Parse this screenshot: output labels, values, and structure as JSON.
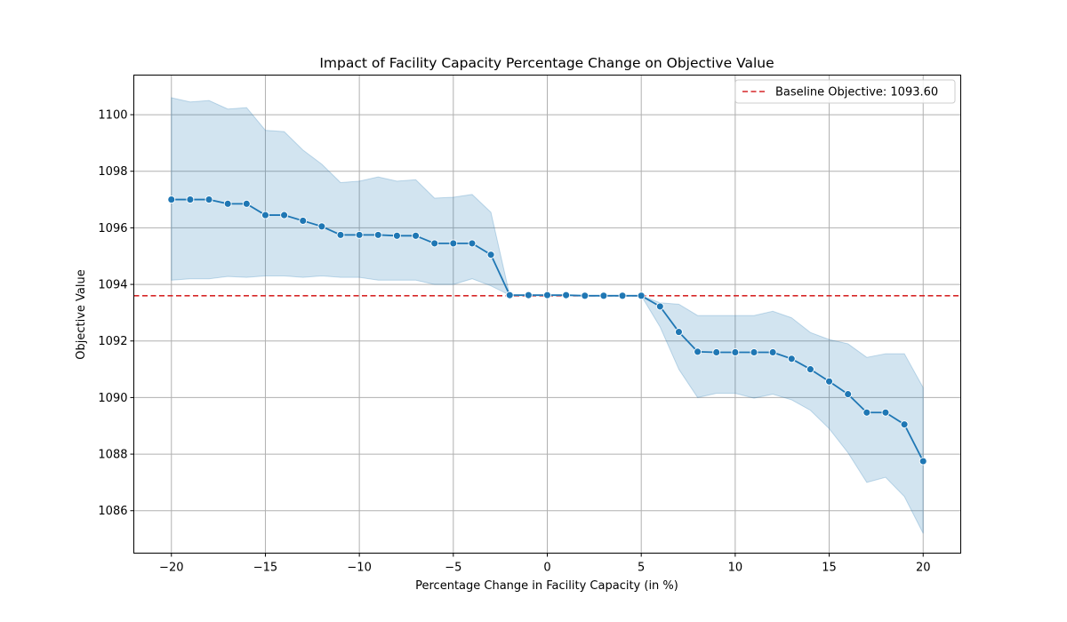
{
  "chart_data": {
    "type": "line",
    "title": "Impact of Facility Capacity Percentage Change on Objective Value",
    "xlabel": "Percentage Change in Facility Capacity (in %)",
    "ylabel": "Objective Value",
    "xlim": [
      -22,
      22
    ],
    "ylim": [
      1084.5,
      1101.4
    ],
    "x_ticks": [
      -20,
      -15,
      -10,
      -5,
      0,
      5,
      10,
      15,
      20
    ],
    "x_tick_labels": [
      "−20",
      "−15",
      "−10",
      "−5",
      "0",
      "5",
      "10",
      "15",
      "20"
    ],
    "y_ticks": [
      1086,
      1088,
      1090,
      1092,
      1094,
      1096,
      1098,
      1100
    ],
    "y_tick_labels": [
      "1086",
      "1088",
      "1090",
      "1092",
      "1094",
      "1096",
      "1098",
      "1100"
    ],
    "grid": true,
    "legend_position": "top-right",
    "colors": {
      "line": "#1f77b4",
      "band": "#1f77b4",
      "baseline": "#d62728",
      "grid": "#b0b0b0"
    },
    "series": [
      {
        "x": [
          -20,
          -19,
          -18,
          -17,
          -16,
          -15,
          -14,
          -13,
          -12,
          -11,
          -10,
          -9,
          -8,
          -7,
          -6,
          -5,
          -4,
          -3,
          -2,
          -1,
          0,
          1,
          2,
          3,
          4,
          5,
          6,
          7,
          8,
          9,
          10,
          11,
          12,
          13,
          14,
          15,
          16,
          17,
          18,
          19,
          20
        ],
        "values": [
          1097.0,
          1097.0,
          1097.0,
          1096.85,
          1096.85,
          1096.45,
          1096.45,
          1096.25,
          1096.05,
          1095.75,
          1095.75,
          1095.75,
          1095.72,
          1095.72,
          1095.45,
          1095.45,
          1095.45,
          1095.05,
          1093.62,
          1093.62,
          1093.62,
          1093.62,
          1093.6,
          1093.6,
          1093.6,
          1093.6,
          1093.22,
          1092.32,
          1091.62,
          1091.6,
          1091.6,
          1091.6,
          1091.6,
          1091.37,
          1091.0,
          1090.57,
          1090.12,
          1089.47,
          1089.47,
          1089.05,
          1087.75
        ],
        "ci_upper": [
          1100.6,
          1100.45,
          1100.5,
          1100.2,
          1100.25,
          1099.45,
          1099.4,
          1098.75,
          1098.25,
          1097.6,
          1097.65,
          1097.8,
          1097.65,
          1097.7,
          1097.05,
          1097.08,
          1097.18,
          1096.55,
          1093.62,
          1093.62,
          1093.62,
          1093.62,
          1093.6,
          1093.6,
          1093.6,
          1093.6,
          1093.35,
          1093.3,
          1092.9,
          1092.9,
          1092.9,
          1092.9,
          1093.05,
          1092.82,
          1092.3,
          1092.05,
          1091.9,
          1091.42,
          1091.55,
          1091.55,
          1090.35
        ],
        "ci_lower": [
          1094.15,
          1094.2,
          1094.2,
          1094.28,
          1094.25,
          1094.3,
          1094.3,
          1094.25,
          1094.3,
          1094.25,
          1094.25,
          1094.15,
          1094.15,
          1094.15,
          1094.0,
          1094.0,
          1094.2,
          1093.95,
          1093.62,
          1093.62,
          1093.62,
          1093.62,
          1093.6,
          1093.6,
          1093.6,
          1093.6,
          1092.5,
          1091.0,
          1090.0,
          1090.15,
          1090.15,
          1089.98,
          1090.12,
          1089.92,
          1089.55,
          1088.9,
          1088.05,
          1087.0,
          1087.18,
          1086.5,
          1085.2
        ]
      }
    ],
    "baseline": {
      "y": 1093.6,
      "label": "Baseline Objective: 1093.60"
    }
  }
}
